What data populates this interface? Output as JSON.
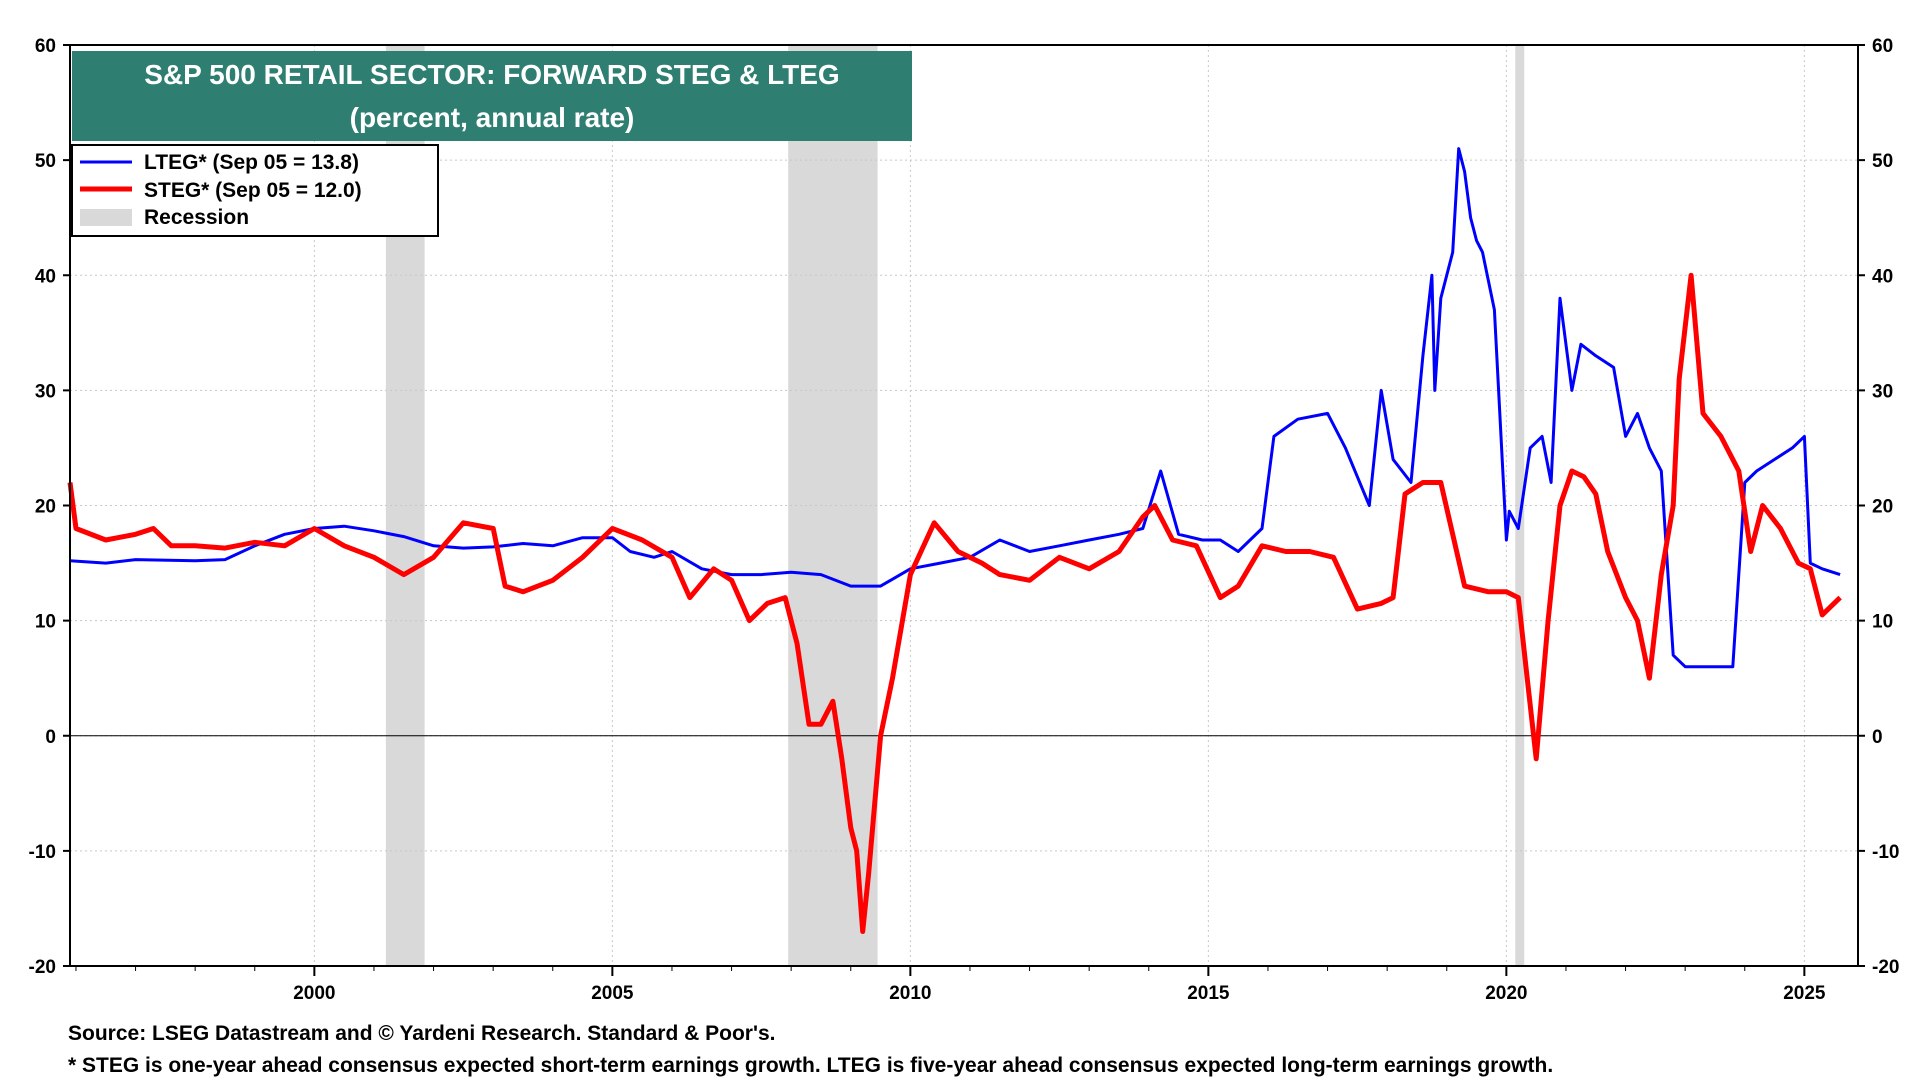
{
  "chart_data": {
    "type": "line",
    "title": "S&P 500 RETAIL SECTOR: FORWARD STEG & LTEG",
    "subtitle": "(percent, annual rate)",
    "xlabel": "",
    "ylabel": "",
    "xlim": [
      1995.9,
      2025.9
    ],
    "ylim": [
      -20,
      60
    ],
    "x_ticks": [
      2000,
      2005,
      2010,
      2015,
      2020,
      2025
    ],
    "y_ticks": [
      -20,
      -10,
      0,
      10,
      20,
      30,
      40,
      50,
      60
    ],
    "grid": true,
    "legend_position": "top-left",
    "recessions": [
      [
        2001.2,
        2001.85
      ],
      [
        2007.95,
        2009.45
      ],
      [
        2020.15,
        2020.3
      ]
    ],
    "recession_label": "Recession",
    "recession_color": "#d9d9d9",
    "series": [
      {
        "name": "LTEG* (Sep 05 = 13.8)",
        "color": "#0000ff",
        "x": [
          1995.9,
          1996.5,
          1997,
          1998,
          1998.5,
          1999,
          1999.5,
          2000,
          2000.5,
          2001,
          2001.5,
          2002,
          2002.5,
          2003,
          2003.5,
          2004,
          2004.5,
          2005,
          2005.3,
          2005.7,
          2006,
          2006.5,
          2007,
          2007.5,
          2008,
          2008.5,
          2009,
          2009.5,
          2010,
          2010.5,
          2011,
          2011.5,
          2012,
          2012.5,
          2013,
          2013.5,
          2013.9,
          2014.2,
          2014.5,
          2014.9,
          2015.2,
          2015.5,
          2015.9,
          2016.1,
          2016.5,
          2017,
          2017.3,
          2017.7,
          2017.9,
          2018.1,
          2018.4,
          2018.6,
          2018.75,
          2018.8,
          2018.9,
          2019.1,
          2019.2,
          2019.3,
          2019.4,
          2019.5,
          2019.6,
          2019.8,
          2020,
          2020.05,
          2020.2,
          2020.4,
          2020.6,
          2020.75,
          2020.9,
          2021.1,
          2021.25,
          2021.5,
          2021.8,
          2022,
          2022.2,
          2022.4,
          2022.6,
          2022.8,
          2023,
          2023.2,
          2023.5,
          2023.8,
          2024,
          2024.2,
          2024.5,
          2024.8,
          2025,
          2025.1,
          2025.3,
          2025.6
        ],
        "values": [
          15.2,
          15.0,
          15.3,
          15.2,
          15.3,
          16.5,
          17.5,
          18.0,
          18.2,
          17.8,
          17.3,
          16.5,
          16.3,
          16.4,
          16.7,
          16.5,
          17.2,
          17.2,
          16.0,
          15.5,
          16.0,
          14.5,
          14.0,
          14.0,
          14.2,
          14.0,
          13.0,
          13.0,
          14.5,
          15.0,
          15.5,
          17.0,
          16.0,
          16.5,
          17.0,
          17.5,
          18.0,
          23.0,
          17.5,
          17.0,
          17.0,
          16.0,
          18.0,
          26.0,
          27.5,
          28.0,
          25.0,
          20.0,
          30.0,
          24.0,
          22.0,
          33.0,
          40.0,
          30.0,
          38.0,
          42.0,
          51.0,
          49.0,
          45.0,
          43.0,
          42.0,
          37.0,
          17.0,
          19.5,
          18.0,
          25.0,
          26.0,
          22.0,
          38.0,
          30.0,
          34.0,
          33.0,
          32.0,
          26.0,
          28.0,
          25.0,
          23.0,
          7.0,
          6.0,
          6.0,
          6.0,
          6.0,
          22.0,
          23.0,
          24.0,
          25.0,
          26.0,
          15.0,
          14.5,
          14.0
        ]
      },
      {
        "name": "STEG* (Sep 05 = 12.0)",
        "color": "#ff0000",
        "x": [
          1995.9,
          1996,
          1996.5,
          1997,
          1997.3,
          1997.6,
          1998,
          1998.5,
          1999,
          1999.5,
          2000,
          2000.5,
          2001,
          2001.5,
          2002,
          2002.5,
          2003,
          2003.2,
          2003.5,
          2004,
          2004.5,
          2005,
          2005.5,
          2006,
          2006.3,
          2006.7,
          2007,
          2007.3,
          2007.6,
          2007.9,
          2008.1,
          2008.3,
          2008.5,
          2008.7,
          2008.85,
          2009,
          2009.1,
          2009.2,
          2009.3,
          2009.5,
          2009.7,
          2010,
          2010.4,
          2010.8,
          2011.2,
          2011.5,
          2012,
          2012.5,
          2013,
          2013.5,
          2013.9,
          2014.1,
          2014.4,
          2014.8,
          2015.2,
          2015.5,
          2015.9,
          2016.3,
          2016.7,
          2017.1,
          2017.5,
          2017.9,
          2018.1,
          2018.3,
          2018.6,
          2018.9,
          2019.3,
          2019.7,
          2020,
          2020.2,
          2020.35,
          2020.5,
          2020.7,
          2020.9,
          2021.1,
          2021.3,
          2021.5,
          2021.7,
          2022,
          2022.2,
          2022.4,
          2022.6,
          2022.8,
          2022.9,
          2023.1,
          2023.3,
          2023.6,
          2023.9,
          2024.1,
          2024.3,
          2024.6,
          2024.9,
          2025.1,
          2025.3,
          2025.6
        ],
        "values": [
          22.0,
          18.0,
          17.0,
          17.5,
          18.0,
          16.5,
          16.5,
          16.3,
          16.8,
          16.5,
          18.0,
          16.5,
          15.5,
          14.0,
          15.5,
          18.5,
          18.0,
          13.0,
          12.5,
          13.5,
          15.5,
          18.0,
          17.0,
          15.5,
          12.0,
          14.5,
          13.5,
          10.0,
          11.5,
          12.0,
          8.0,
          1.0,
          1.0,
          3.0,
          -2.0,
          -8.0,
          -10.0,
          -17.0,
          -12.0,
          0.0,
          5.0,
          14.0,
          18.5,
          16.0,
          15.0,
          14.0,
          13.5,
          15.5,
          14.5,
          16.0,
          19.0,
          20.0,
          17.0,
          16.5,
          12.0,
          13.0,
          16.5,
          16.0,
          16.0,
          15.5,
          11.0,
          11.5,
          12.0,
          21.0,
          22.0,
          22.0,
          13.0,
          12.5,
          12.5,
          12.0,
          5.0,
          -2.0,
          10.0,
          20.0,
          23.0,
          22.5,
          21.0,
          16.0,
          12.0,
          10.0,
          5.0,
          14.0,
          20.0,
          31.0,
          40.0,
          28.0,
          26.0,
          23.0,
          16.0,
          20.0,
          18.0,
          15.0,
          14.5,
          10.5,
          12.0
        ]
      }
    ]
  },
  "footer": {
    "source": "Source: LSEG Datastream and © Yardeni Research. Standard & Poor's.",
    "note": "* STEG is one-year ahead consensus expected short-term earnings growth. LTEG is five-year ahead consensus expected long-term earnings growth."
  },
  "colors": {
    "title_bg": "#2e7f71",
    "grid": "#c8c8c8"
  }
}
